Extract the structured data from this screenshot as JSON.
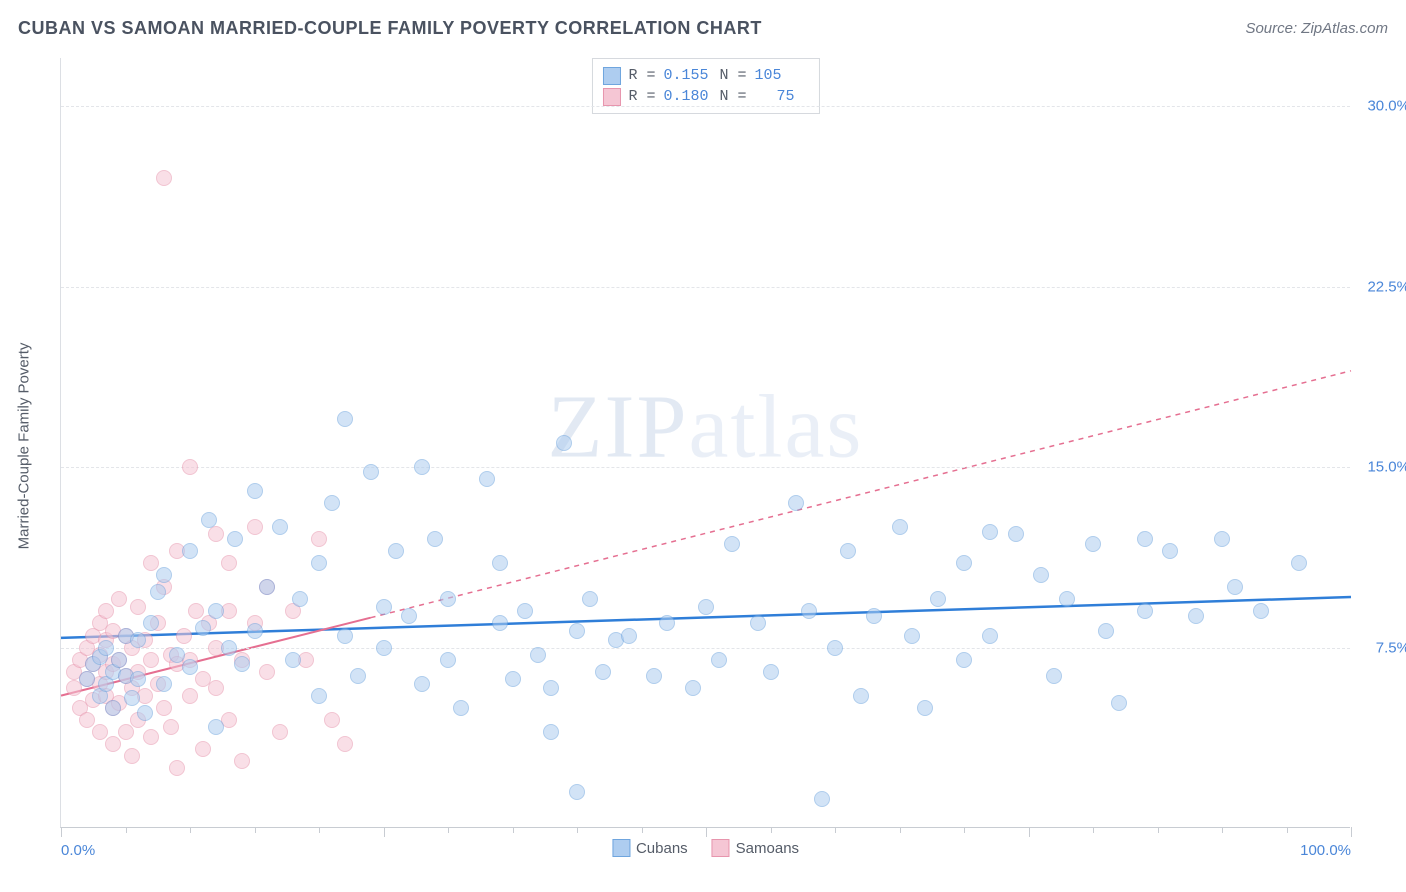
{
  "title": "CUBAN VS SAMOAN MARRIED-COUPLE FAMILY POVERTY CORRELATION CHART",
  "source_label": "Source: ZipAtlas.com",
  "watermark": "ZIPatlas",
  "y_axis_label": "Married-Couple Family Poverty",
  "chart": {
    "type": "scatter",
    "xlim": [
      0,
      100
    ],
    "ylim": [
      0,
      32
    ],
    "y_ticks": [
      7.5,
      15.0,
      22.5,
      30.0
    ],
    "y_tick_labels": [
      "7.5%",
      "15.0%",
      "22.5%",
      "30.0%"
    ],
    "x_major_ticks": [
      0,
      25,
      50,
      75,
      100
    ],
    "x_minor_step": 5,
    "x_label_min": "0.0%",
    "x_label_max": "100.0%",
    "background_color": "#ffffff",
    "grid_color": "#e3e5e9",
    "axis_color": "#c8ccd2",
    "tick_label_color": "#4a86d8",
    "marker_radius": 8,
    "marker_opacity": 0.55
  },
  "series": {
    "cubans": {
      "label": "Cubans",
      "fill_color": "#aecdf0",
      "border_color": "#6fa5de",
      "line_color": "#2f7ed8",
      "line_width": 2.5,
      "line_dash": "none",
      "r_value": "0.155",
      "n_value": "105",
      "trend_start_y": 7.9,
      "trend_end_y": 9.6,
      "trend_x_start": 0,
      "trend_x_end": 100,
      "points": [
        [
          2,
          6.2
        ],
        [
          2.5,
          6.8
        ],
        [
          3,
          5.5
        ],
        [
          3,
          7.1
        ],
        [
          3.5,
          6.0
        ],
        [
          3.5,
          7.5
        ],
        [
          4,
          5.0
        ],
        [
          4,
          6.5
        ],
        [
          4.5,
          7.0
        ],
        [
          5,
          6.3
        ],
        [
          5,
          8.0
        ],
        [
          5.5,
          5.4
        ],
        [
          6,
          7.8
        ],
        [
          6,
          6.2
        ],
        [
          6.5,
          4.8
        ],
        [
          7,
          8.5
        ],
        [
          7.5,
          9.8
        ],
        [
          8,
          6.0
        ],
        [
          8,
          10.5
        ],
        [
          9,
          7.2
        ],
        [
          10,
          11.5
        ],
        [
          10,
          6.7
        ],
        [
          11,
          8.3
        ],
        [
          11.5,
          12.8
        ],
        [
          12,
          4.2
        ],
        [
          12,
          9.0
        ],
        [
          13,
          7.5
        ],
        [
          13.5,
          12.0
        ],
        [
          14,
          6.8
        ],
        [
          15,
          14.0
        ],
        [
          15,
          8.2
        ],
        [
          16,
          10.0
        ],
        [
          17,
          12.5
        ],
        [
          18,
          7.0
        ],
        [
          18.5,
          9.5
        ],
        [
          20,
          5.5
        ],
        [
          20,
          11.0
        ],
        [
          21,
          13.5
        ],
        [
          22,
          17.0
        ],
        [
          22,
          8.0
        ],
        [
          23,
          6.3
        ],
        [
          24,
          14.8
        ],
        [
          25,
          9.2
        ],
        [
          25,
          7.5
        ],
        [
          26,
          11.5
        ],
        [
          27,
          8.8
        ],
        [
          28,
          6.0
        ],
        [
          28,
          15.0
        ],
        [
          29,
          12.0
        ],
        [
          30,
          9.5
        ],
        [
          30,
          7.0
        ],
        [
          31,
          5.0
        ],
        [
          33,
          14.5
        ],
        [
          34,
          8.5
        ],
        [
          34,
          11.0
        ],
        [
          35,
          6.2
        ],
        [
          36,
          9.0
        ],
        [
          37,
          7.2
        ],
        [
          38,
          5.8
        ],
        [
          38,
          4.0
        ],
        [
          39,
          16.0
        ],
        [
          40,
          8.2
        ],
        [
          40,
          1.5
        ],
        [
          41,
          9.5
        ],
        [
          42,
          6.5
        ],
        [
          43,
          7.8
        ],
        [
          44,
          8.0
        ],
        [
          46,
          6.3
        ],
        [
          47,
          8.5
        ],
        [
          49,
          5.8
        ],
        [
          50,
          9.2
        ],
        [
          51,
          7.0
        ],
        [
          52,
          11.8
        ],
        [
          54,
          8.5
        ],
        [
          55,
          6.5
        ],
        [
          57,
          13.5
        ],
        [
          58,
          9.0
        ],
        [
          59,
          1.2
        ],
        [
          60,
          7.5
        ],
        [
          61,
          11.5
        ],
        [
          62,
          5.5
        ],
        [
          63,
          8.8
        ],
        [
          65,
          12.5
        ],
        [
          66,
          8.0
        ],
        [
          67,
          5.0
        ],
        [
          68,
          9.5
        ],
        [
          70,
          7.0
        ],
        [
          70,
          11.0
        ],
        [
          72,
          8.0
        ],
        [
          72,
          12.3
        ],
        [
          74,
          12.2
        ],
        [
          76,
          10.5
        ],
        [
          77,
          6.3
        ],
        [
          78,
          9.5
        ],
        [
          80,
          11.8
        ],
        [
          81,
          8.2
        ],
        [
          82,
          5.2
        ],
        [
          84,
          12.0
        ],
        [
          84,
          9.0
        ],
        [
          86,
          11.5
        ],
        [
          88,
          8.8
        ],
        [
          90,
          12.0
        ],
        [
          91,
          10.0
        ],
        [
          93,
          9.0
        ],
        [
          96,
          11.0
        ]
      ]
    },
    "samoans": {
      "label": "Samoans",
      "fill_color": "#f5c6d4",
      "border_color": "#e795ad",
      "line_color": "#e56f91",
      "line_width": 2,
      "line_dash": "5,5",
      "r_value": "0.180",
      "n_value": "75",
      "trend_start_y": 5.5,
      "trend_end_y": 19.0,
      "trend_x_start": 0,
      "trend_x_end": 100,
      "solid_x_end": 24,
      "points": [
        [
          1,
          5.8
        ],
        [
          1,
          6.5
        ],
        [
          1.5,
          7.0
        ],
        [
          1.5,
          5.0
        ],
        [
          2,
          6.2
        ],
        [
          2,
          7.5
        ],
        [
          2,
          4.5
        ],
        [
          2.5,
          6.8
        ],
        [
          2.5,
          8.0
        ],
        [
          2.5,
          5.3
        ],
        [
          3,
          7.2
        ],
        [
          3,
          6.0
        ],
        [
          3,
          8.5
        ],
        [
          3,
          4.0
        ],
        [
          3.5,
          5.5
        ],
        [
          3.5,
          7.8
        ],
        [
          3.5,
          9.0
        ],
        [
          3.5,
          6.5
        ],
        [
          4,
          5.0
        ],
        [
          4,
          8.2
        ],
        [
          4,
          6.8
        ],
        [
          4,
          3.5
        ],
        [
          4.5,
          7.0
        ],
        [
          4.5,
          5.2
        ],
        [
          4.5,
          9.5
        ],
        [
          5,
          6.3
        ],
        [
          5,
          4.0
        ],
        [
          5,
          8.0
        ],
        [
          5.5,
          7.5
        ],
        [
          5.5,
          5.8
        ],
        [
          5.5,
          3.0
        ],
        [
          6,
          6.5
        ],
        [
          6,
          9.2
        ],
        [
          6,
          4.5
        ],
        [
          6.5,
          7.8
        ],
        [
          6.5,
          5.5
        ],
        [
          7,
          3.8
        ],
        [
          7,
          11.0
        ],
        [
          7,
          7.0
        ],
        [
          7.5,
          6.0
        ],
        [
          7.5,
          8.5
        ],
        [
          8,
          27.0
        ],
        [
          8,
          5.0
        ],
        [
          8,
          10.0
        ],
        [
          8.5,
          7.2
        ],
        [
          8.5,
          4.2
        ],
        [
          9,
          6.8
        ],
        [
          9,
          11.5
        ],
        [
          9,
          2.5
        ],
        [
          9.5,
          8.0
        ],
        [
          10,
          5.5
        ],
        [
          10,
          15.0
        ],
        [
          10,
          7.0
        ],
        [
          10.5,
          9.0
        ],
        [
          11,
          6.2
        ],
        [
          11,
          3.3
        ],
        [
          11.5,
          8.5
        ],
        [
          12,
          12.2
        ],
        [
          12,
          5.8
        ],
        [
          12,
          7.5
        ],
        [
          13,
          9.0
        ],
        [
          13,
          4.5
        ],
        [
          13,
          11.0
        ],
        [
          14,
          7.0
        ],
        [
          14,
          2.8
        ],
        [
          15,
          8.5
        ],
        [
          15,
          12.5
        ],
        [
          16,
          6.5
        ],
        [
          16,
          10.0
        ],
        [
          17,
          4.0
        ],
        [
          18,
          9.0
        ],
        [
          19,
          7.0
        ],
        [
          20,
          12.0
        ],
        [
          21,
          4.5
        ],
        [
          22,
          3.5
        ]
      ]
    }
  },
  "stats_labels": {
    "r": "R =",
    "n": "N ="
  },
  "legend": {
    "series1": "Cubans",
    "series2": "Samoans"
  }
}
